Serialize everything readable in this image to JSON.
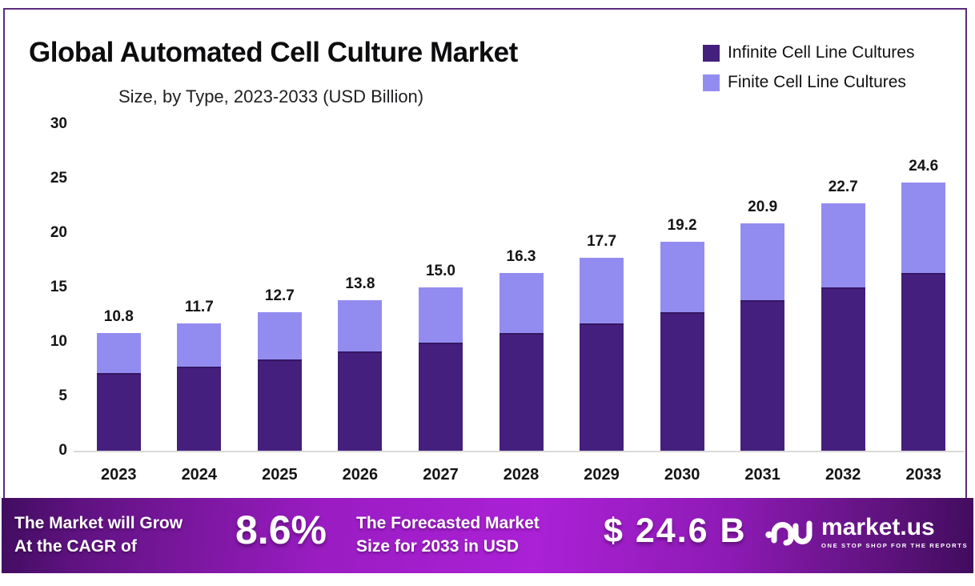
{
  "header": {
    "title": "Global Automated Cell Culture Market",
    "subtitle": "Size, by Type, 2023-2033 (USD Billion)"
  },
  "legend": [
    {
      "label": "Infinite Cell Line Cultures",
      "color": "#451f7d"
    },
    {
      "label": "Finite Cell Line Cultures",
      "color": "#938cf0"
    }
  ],
  "chart_data": {
    "type": "bar",
    "stacked": true,
    "title": "Global Automated Cell Culture Market Size, by Type, 2023-2033 (USD Billion)",
    "categories": [
      "2023",
      "2024",
      "2025",
      "2026",
      "2027",
      "2028",
      "2029",
      "2030",
      "2031",
      "2032",
      "2033"
    ],
    "series": [
      {
        "name": "Infinite Cell Line Cultures",
        "color": "#451f7d",
        "values": [
          7.1,
          7.7,
          8.4,
          9.1,
          9.9,
          10.8,
          11.7,
          12.7,
          13.8,
          15.0,
          16.3
        ]
      },
      {
        "name": "Finite Cell Line Cultures",
        "color": "#938cf0",
        "values": [
          3.7,
          4.0,
          4.3,
          4.7,
          5.1,
          5.5,
          6.0,
          6.5,
          7.1,
          7.7,
          8.3
        ]
      }
    ],
    "totals": [
      10.8,
      11.7,
      12.7,
      13.8,
      15.0,
      16.3,
      17.7,
      19.2,
      20.9,
      22.7,
      24.6
    ],
    "xlabel": "",
    "ylabel": "",
    "ylim": [
      0,
      30
    ],
    "yticks": [
      0,
      5,
      10,
      15,
      20,
      25,
      30
    ],
    "grid": false,
    "legend_position": "top-right"
  },
  "footer": {
    "cagr_label_line1": "The Market will Grow",
    "cagr_label_line2": "At the CAGR of",
    "cagr_value": "8.6%",
    "forecast_label_line1": "The Forecasted Market",
    "forecast_label_line2": "Size for 2033 in USD",
    "forecast_value": "$ 24.6 B",
    "brand": {
      "name": "market.us",
      "tagline": "ONE STOP SHOP FOR THE REPORTS"
    }
  },
  "colors": {
    "frame_border": "#5a2b7d",
    "bar_dark": "#451f7d",
    "bar_light": "#938cf0",
    "baseline": "#d9d9d9",
    "footer_gradient_mid": "#ab21d6",
    "footer_gradient_edge": "#410d60",
    "text": "#141414"
  }
}
